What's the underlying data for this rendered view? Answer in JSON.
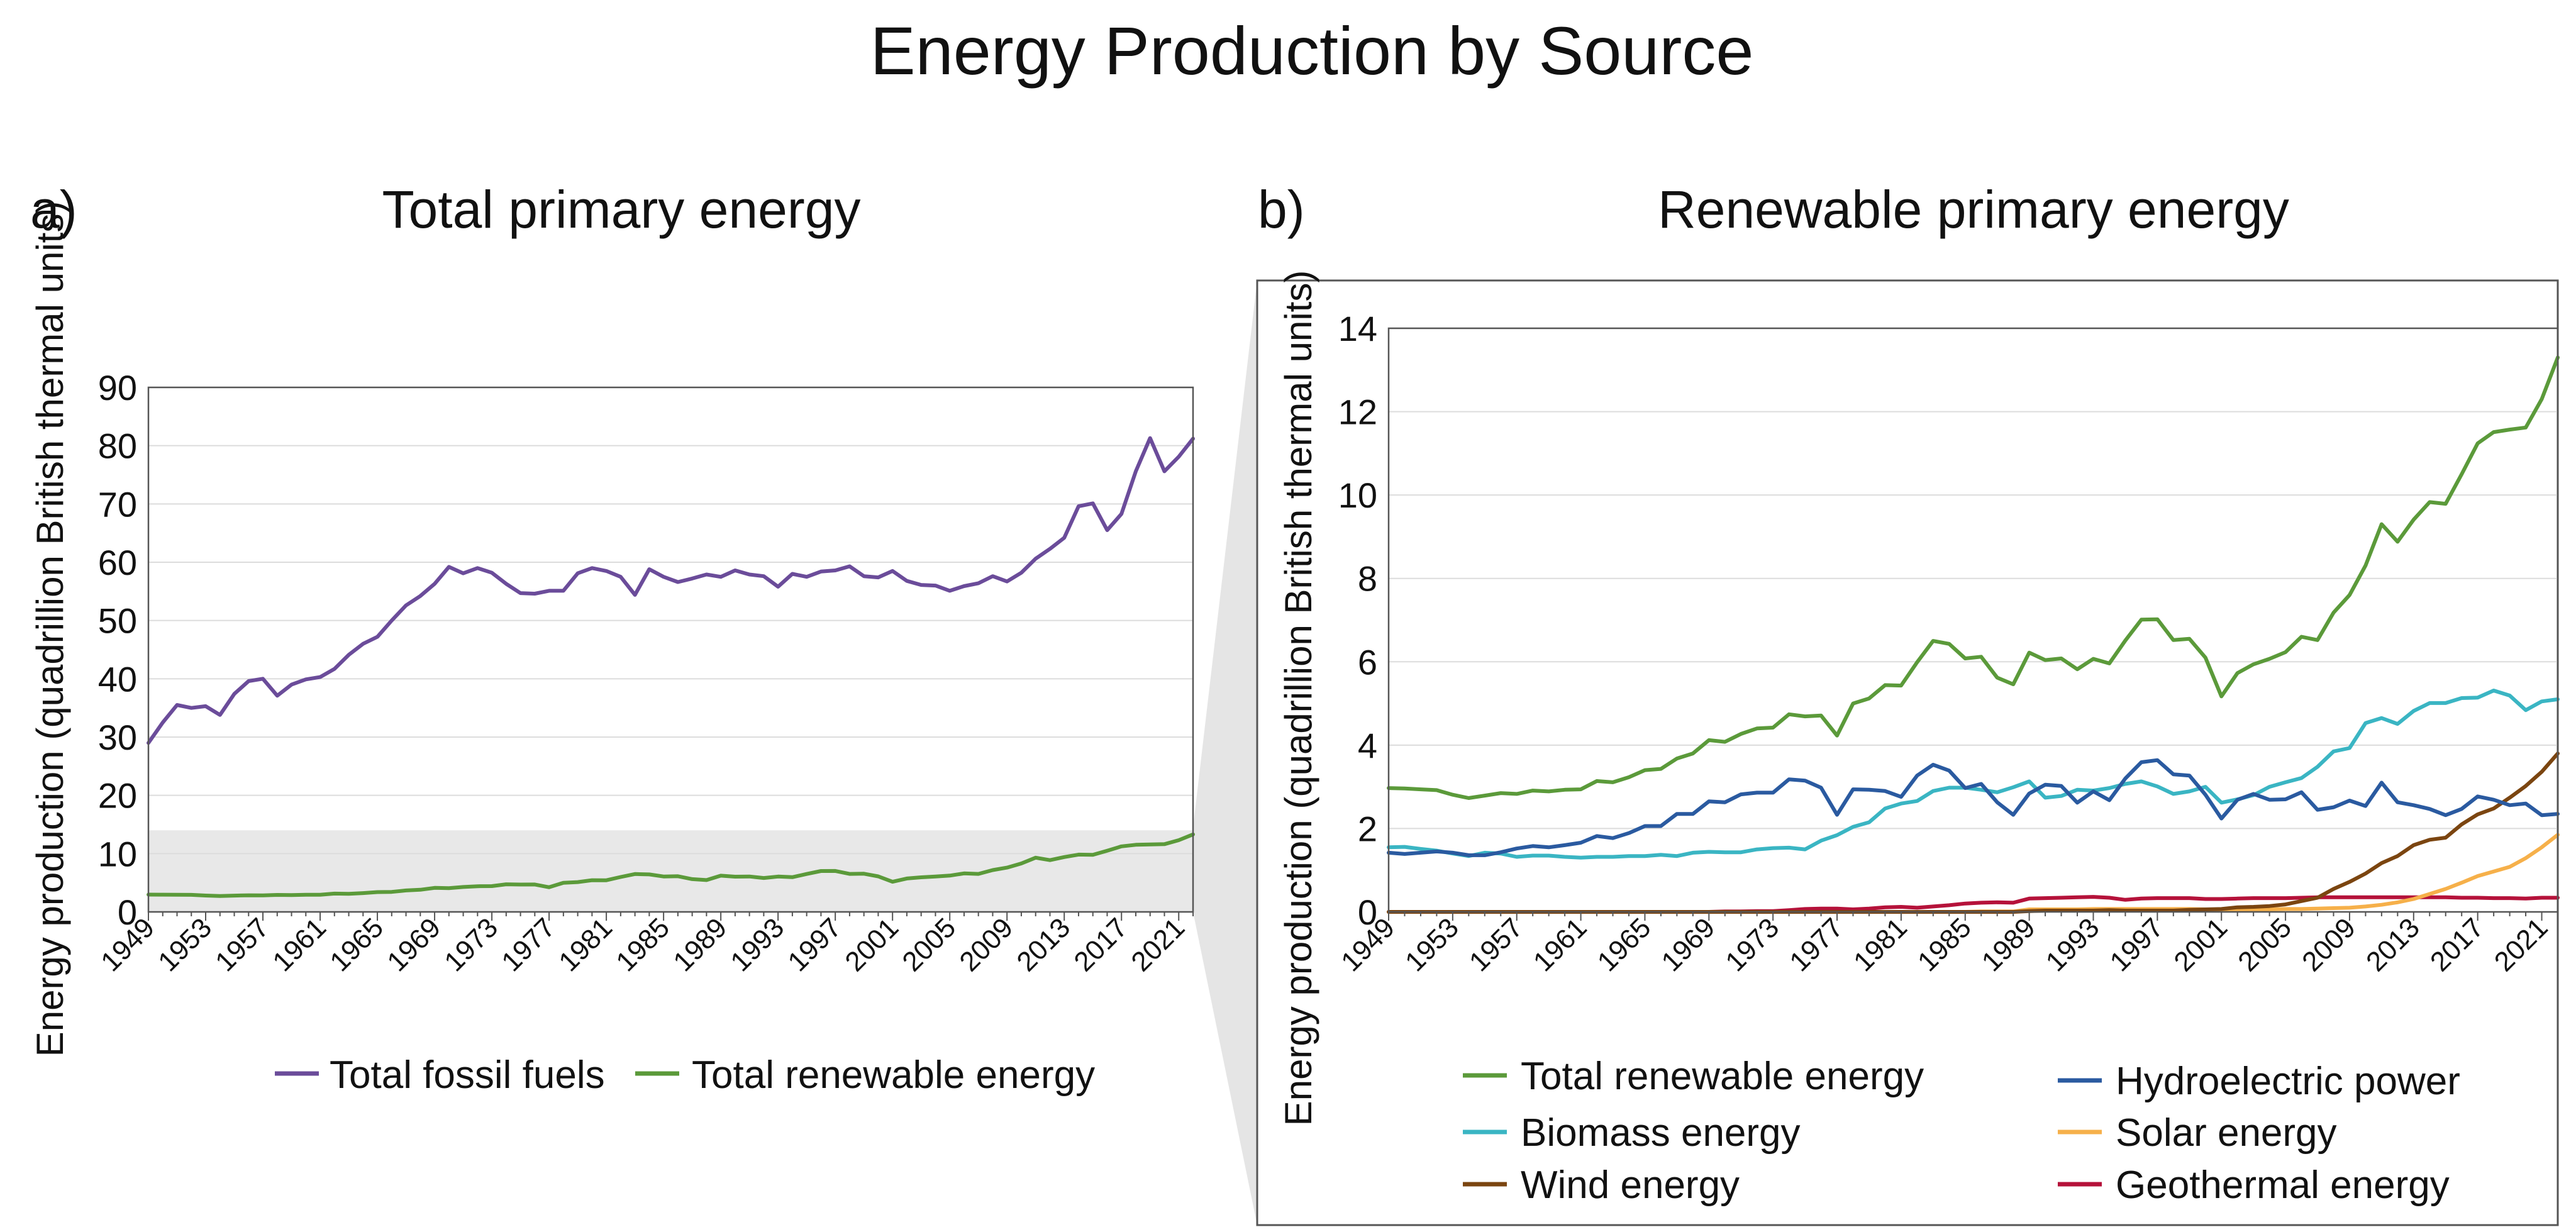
{
  "figure_title": "Energy Production by Source",
  "panel_a": {
    "label": "a)",
    "title": "Total primary energy"
  },
  "panel_b": {
    "label": "b)",
    "title": "Renewable primary energy"
  },
  "colors": {
    "fossil": "#6b4c9a",
    "total_renewable": "#5b9a3a",
    "biomass": "#3ab5c3",
    "wind": "#7b4510",
    "hydro": "#2a5aa0",
    "solar": "#f6b04a",
    "geothermal": "#b5123a",
    "zoom_shade": "#e8e8e8",
    "grid": "#dcdcdc"
  },
  "chart_data": [
    {
      "type": "line",
      "title": "Total primary energy",
      "ylabel": "Energy production (quadrillion British thermal units)",
      "xlabel": "",
      "x": [
        1949,
        1950,
        1951,
        1952,
        1953,
        1954,
        1955,
        1956,
        1957,
        1958,
        1959,
        1960,
        1961,
        1962,
        1963,
        1964,
        1965,
        1966,
        1967,
        1968,
        1969,
        1970,
        1971,
        1972,
        1973,
        1974,
        1975,
        1976,
        1977,
        1978,
        1979,
        1980,
        1981,
        1982,
        1983,
        1984,
        1985,
        1986,
        1987,
        1988,
        1989,
        1990,
        1991,
        1992,
        1993,
        1994,
        1995,
        1996,
        1997,
        1998,
        1999,
        2000,
        2001,
        2002,
        2003,
        2004,
        2005,
        2006,
        2007,
        2008,
        2009,
        2010,
        2011,
        2012,
        2013,
        2014,
        2015,
        2016,
        2017,
        2018,
        2019,
        2020,
        2021,
        2022
      ],
      "xticks": [
        1949,
        1953,
        1957,
        1961,
        1965,
        1969,
        1973,
        1977,
        1981,
        1985,
        1989,
        1993,
        1997,
        2001,
        2005,
        2009,
        2013,
        2017,
        2021
      ],
      "yticks": [
        0,
        10,
        20,
        30,
        40,
        50,
        60,
        70,
        80,
        90
      ],
      "ylim": [
        0,
        90
      ],
      "grid": "horizontal",
      "legend_position": "bottom",
      "zoom_band": [
        0,
        14
      ],
      "series": [
        {
          "name": "Total fossil fuels",
          "color_key": "fossil",
          "values": [
            29,
            32.5,
            35.5,
            35,
            35.3,
            33.8,
            37.4,
            39.6,
            40,
            37.1,
            39,
            39.9,
            40.3,
            41.7,
            44.1,
            46,
            47.2,
            50,
            52.6,
            54.2,
            56.3,
            59.2,
            58.1,
            59,
            58.2,
            56.3,
            54.7,
            54.6,
            55.1,
            55.1,
            58.1,
            59,
            58.5,
            57.5,
            54.4,
            58.8,
            57.5,
            56.6,
            57.2,
            57.9,
            57.5,
            58.6,
            57.9,
            57.6,
            55.8,
            58,
            57.5,
            58.4,
            58.6,
            59.3,
            57.6,
            57.4,
            58.5,
            56.8,
            56.1,
            56,
            55.1,
            55.9,
            56.4,
            57.6,
            56.7,
            58.2,
            60.6,
            62.3,
            64.2,
            69.6,
            70.1,
            65.5,
            68.3,
            75.6,
            81.3,
            75.6,
            78.1,
            81.2
          ]
        },
        {
          "name": "Total renewable energy",
          "color_key": "total_renewable",
          "values": [
            2.97,
            2.96,
            2.94,
            2.92,
            2.81,
            2.73,
            2.79,
            2.85,
            2.83,
            2.91,
            2.89,
            2.93,
            2.94,
            3.14,
            3.11,
            3.23,
            3.4,
            3.43,
            3.68,
            3.8,
            4.12,
            4.08,
            4.27,
            4.4,
            4.42,
            4.74,
            4.69,
            4.71,
            4.23,
            5,
            5.12,
            5.44,
            5.43,
            5.99,
            6.5,
            6.43,
            6.08,
            6.12,
            5.62,
            5.46,
            6.22,
            6.04,
            6.08,
            5.82,
            6.07,
            5.96,
            6.51,
            7.01,
            7.02,
            6.52,
            6.55,
            6.1,
            5.17,
            5.73,
            5.94,
            6.07,
            6.23,
            6.6,
            6.52,
            7.18,
            7.6,
            8.31,
            9.3,
            8.88,
            9.41,
            9.83,
            9.79,
            10.5,
            11.24,
            11.51,
            11.57,
            11.62,
            12.3,
            13.3
          ]
        }
      ]
    },
    {
      "type": "line",
      "title": "Renewable primary energy",
      "ylabel": "Energy production (quadrillion British thermal units)",
      "xlabel": "",
      "x": [
        1949,
        1950,
        1951,
        1952,
        1953,
        1954,
        1955,
        1956,
        1957,
        1958,
        1959,
        1960,
        1961,
        1962,
        1963,
        1964,
        1965,
        1966,
        1967,
        1968,
        1969,
        1970,
        1971,
        1972,
        1973,
        1974,
        1975,
        1976,
        1977,
        1978,
        1979,
        1980,
        1981,
        1982,
        1983,
        1984,
        1985,
        1986,
        1987,
        1988,
        1989,
        1990,
        1991,
        1992,
        1993,
        1994,
        1995,
        1996,
        1997,
        1998,
        1999,
        2000,
        2001,
        2002,
        2003,
        2004,
        2005,
        2006,
        2007,
        2008,
        2009,
        2010,
        2011,
        2012,
        2013,
        2014,
        2015,
        2016,
        2017,
        2018,
        2019,
        2020,
        2021,
        2022
      ],
      "xticks": [
        1949,
        1953,
        1957,
        1961,
        1965,
        1969,
        1973,
        1977,
        1981,
        1985,
        1989,
        1993,
        1997,
        2001,
        2005,
        2009,
        2013,
        2017,
        2021
      ],
      "yticks": [
        0,
        2,
        4,
        6,
        8,
        10,
        12,
        14
      ],
      "ylim": [
        0,
        14
      ],
      "grid": "horizontal",
      "legend_position": "bottom",
      "series": [
        {
          "name": "Total renewable energy",
          "color_key": "total_renewable",
          "values": [
            2.97,
            2.96,
            2.94,
            2.92,
            2.81,
            2.73,
            2.79,
            2.85,
            2.83,
            2.91,
            2.89,
            2.93,
            2.94,
            3.14,
            3.11,
            3.23,
            3.4,
            3.43,
            3.68,
            3.8,
            4.12,
            4.08,
            4.27,
            4.4,
            4.42,
            4.74,
            4.69,
            4.71,
            4.23,
            5,
            5.12,
            5.44,
            5.43,
            5.99,
            6.5,
            6.43,
            6.08,
            6.12,
            5.62,
            5.46,
            6.22,
            6.04,
            6.08,
            5.82,
            6.07,
            5.96,
            6.51,
            7.01,
            7.02,
            6.52,
            6.55,
            6.1,
            5.17,
            5.73,
            5.94,
            6.07,
            6.23,
            6.6,
            6.52,
            7.18,
            7.6,
            8.31,
            9.3,
            8.88,
            9.41,
            9.83,
            9.79,
            10.5,
            11.24,
            11.51,
            11.57,
            11.62,
            12.3,
            13.3
          ]
        },
        {
          "name": "Hydroelectric power",
          "color_key": "hydro",
          "values": [
            1.42,
            1.39,
            1.42,
            1.45,
            1.42,
            1.36,
            1.36,
            1.43,
            1.52,
            1.58,
            1.55,
            1.6,
            1.66,
            1.82,
            1.77,
            1.89,
            2.06,
            2.06,
            2.35,
            2.35,
            2.65,
            2.63,
            2.82,
            2.86,
            2.86,
            3.18,
            3.15,
            2.98,
            2.33,
            2.94,
            2.93,
            2.9,
            2.76,
            3.27,
            3.53,
            3.39,
            2.97,
            3.07,
            2.63,
            2.33,
            2.84,
            3.05,
            3.02,
            2.62,
            2.89,
            2.68,
            3.2,
            3.59,
            3.64,
            3.3,
            3.27,
            2.81,
            2.24,
            2.69,
            2.83,
            2.69,
            2.7,
            2.87,
            2.45,
            2.51,
            2.67,
            2.54,
            3.1,
            2.63,
            2.56,
            2.47,
            2.32,
            2.47,
            2.77,
            2.69,
            2.56,
            2.6,
            2.32,
            2.35
          ]
        },
        {
          "name": "Biomass energy",
          "color_key": "biomass",
          "values": [
            1.55,
            1.56,
            1.51,
            1.47,
            1.4,
            1.34,
            1.42,
            1.4,
            1.32,
            1.35,
            1.35,
            1.32,
            1.3,
            1.32,
            1.32,
            1.34,
            1.34,
            1.37,
            1.34,
            1.42,
            1.44,
            1.43,
            1.43,
            1.5,
            1.53,
            1.54,
            1.5,
            1.71,
            1.84,
            2.04,
            2.15,
            2.48,
            2.6,
            2.66,
            2.9,
            2.98,
            2.98,
            2.93,
            2.87,
            2.99,
            3.13,
            2.74,
            2.78,
            2.93,
            2.91,
            2.97,
            3.07,
            3.13,
            3.01,
            2.83,
            2.89,
            3.0,
            2.62,
            2.7,
            2.8,
            3.0,
            3.11,
            3.21,
            3.48,
            3.85,
            3.93,
            4.53,
            4.65,
            4.51,
            4.82,
            5.01,
            5.01,
            5.13,
            5.14,
            5.31,
            5.19,
            4.84,
            5.05,
            5.1
          ]
        },
        {
          "name": "Wind energy",
          "color_key": "wind",
          "values": [
            0,
            0,
            0,
            0,
            0,
            0,
            0,
            0,
            0,
            0,
            0,
            0,
            0,
            0,
            0,
            0,
            0,
            0,
            0,
            0,
            0,
            0,
            0,
            0,
            0,
            0,
            0,
            0,
            0,
            0,
            0,
            0,
            0,
            0,
            0,
            0,
            0,
            0,
            0,
            0,
            0.02,
            0.03,
            0.03,
            0.03,
            0.03,
            0.04,
            0.03,
            0.03,
            0.03,
            0.03,
            0.05,
            0.06,
            0.07,
            0.11,
            0.12,
            0.14,
            0.18,
            0.26,
            0.34,
            0.55,
            0.72,
            0.92,
            1.17,
            1.34,
            1.6,
            1.73,
            1.78,
            2.1,
            2.34,
            2.48,
            2.74,
            3.02,
            3.36,
            3.8
          ]
        },
        {
          "name": "Solar energy",
          "color_key": "solar",
          "values": [
            0,
            0,
            0,
            0,
            0,
            0,
            0,
            0,
            0,
            0,
            0,
            0,
            0,
            0,
            0,
            0,
            0,
            0,
            0,
            0,
            0,
            0,
            0,
            0,
            0,
            0,
            0,
            0,
            0,
            0,
            0,
            0,
            0,
            0,
            0,
            0,
            0,
            0.01,
            0.01,
            0.01,
            0.06,
            0.06,
            0.06,
            0.06,
            0.07,
            0.07,
            0.07,
            0.07,
            0.07,
            0.07,
            0.07,
            0.06,
            0.06,
            0.06,
            0.06,
            0.06,
            0.07,
            0.07,
            0.08,
            0.09,
            0.1,
            0.13,
            0.17,
            0.23,
            0.31,
            0.43,
            0.55,
            0.7,
            0.86,
            0.97,
            1.08,
            1.29,
            1.55,
            1.85
          ]
        },
        {
          "name": "Geothermal energy",
          "color_key": "geothermal",
          "values": [
            0,
            0,
            0,
            0,
            0,
            0,
            0,
            0,
            0,
            0,
            0,
            0,
            0,
            0,
            0,
            0,
            0,
            0,
            0,
            0,
            0,
            0.01,
            0.01,
            0.02,
            0.02,
            0.04,
            0.07,
            0.08,
            0.08,
            0.06,
            0.08,
            0.11,
            0.12,
            0.1,
            0.13,
            0.16,
            0.2,
            0.22,
            0.23,
            0.22,
            0.32,
            0.33,
            0.34,
            0.35,
            0.36,
            0.34,
            0.29,
            0.32,
            0.33,
            0.33,
            0.33,
            0.31,
            0.31,
            0.32,
            0.33,
            0.33,
            0.33,
            0.34,
            0.35,
            0.35,
            0.35,
            0.35,
            0.35,
            0.35,
            0.35,
            0.35,
            0.35,
            0.34,
            0.34,
            0.33,
            0.33,
            0.32,
            0.34,
            0.34
          ]
        }
      ]
    }
  ]
}
